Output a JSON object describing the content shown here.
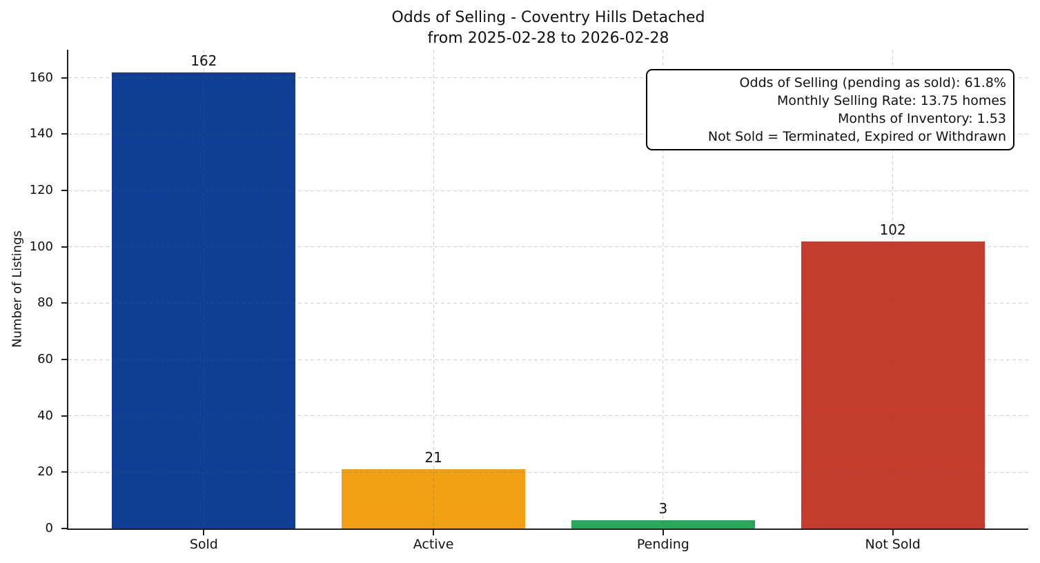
{
  "figure": {
    "title_line1": "Odds of Selling - Coventry Hills Detached",
    "title_line2": "from 2025-02-28 to 2026-02-28",
    "ylabel": "Number of Listings"
  },
  "annotation": {
    "lines": [
      "Odds of Selling (pending as sold): 61.8%",
      "Monthly Selling Rate: 13.75 homes",
      "Months of Inventory: 1.53",
      "Not Sold = Terminated, Expired or Withdrawn"
    ]
  },
  "chart_data": {
    "type": "bar",
    "title": "Odds of Selling - Coventry Hills Detached",
    "subtitle": "from 2025-02-28 to 2026-02-28",
    "categories": [
      "Sold",
      "Active",
      "Pending",
      "Not Sold"
    ],
    "values": [
      162,
      21,
      3,
      102
    ],
    "bar_value_labels": [
      "162",
      "21",
      "3",
      "102"
    ],
    "bar_colors": [
      "#0e3f94",
      "#f0a012",
      "#27a85b",
      "#c33c2c"
    ],
    "xlabel": "",
    "ylabel": "Number of Listings",
    "ylim": [
      0,
      170
    ],
    "yticks": [
      0,
      20,
      40,
      60,
      80,
      100,
      120,
      140,
      160
    ],
    "grid": true,
    "grid_linestyle": "dashed",
    "grid_above_bars": true,
    "legend_position": "none",
    "annotations": [
      "Odds of Selling (pending as sold): 61.8%",
      "Monthly Selling Rate: 13.75 homes",
      "Months of Inventory: 1.53",
      "Not Sold = Terminated, Expired or Withdrawn"
    ]
  },
  "colors": {
    "background": "#ffffff",
    "axis": "#1f1f1f",
    "text": "#111111"
  }
}
